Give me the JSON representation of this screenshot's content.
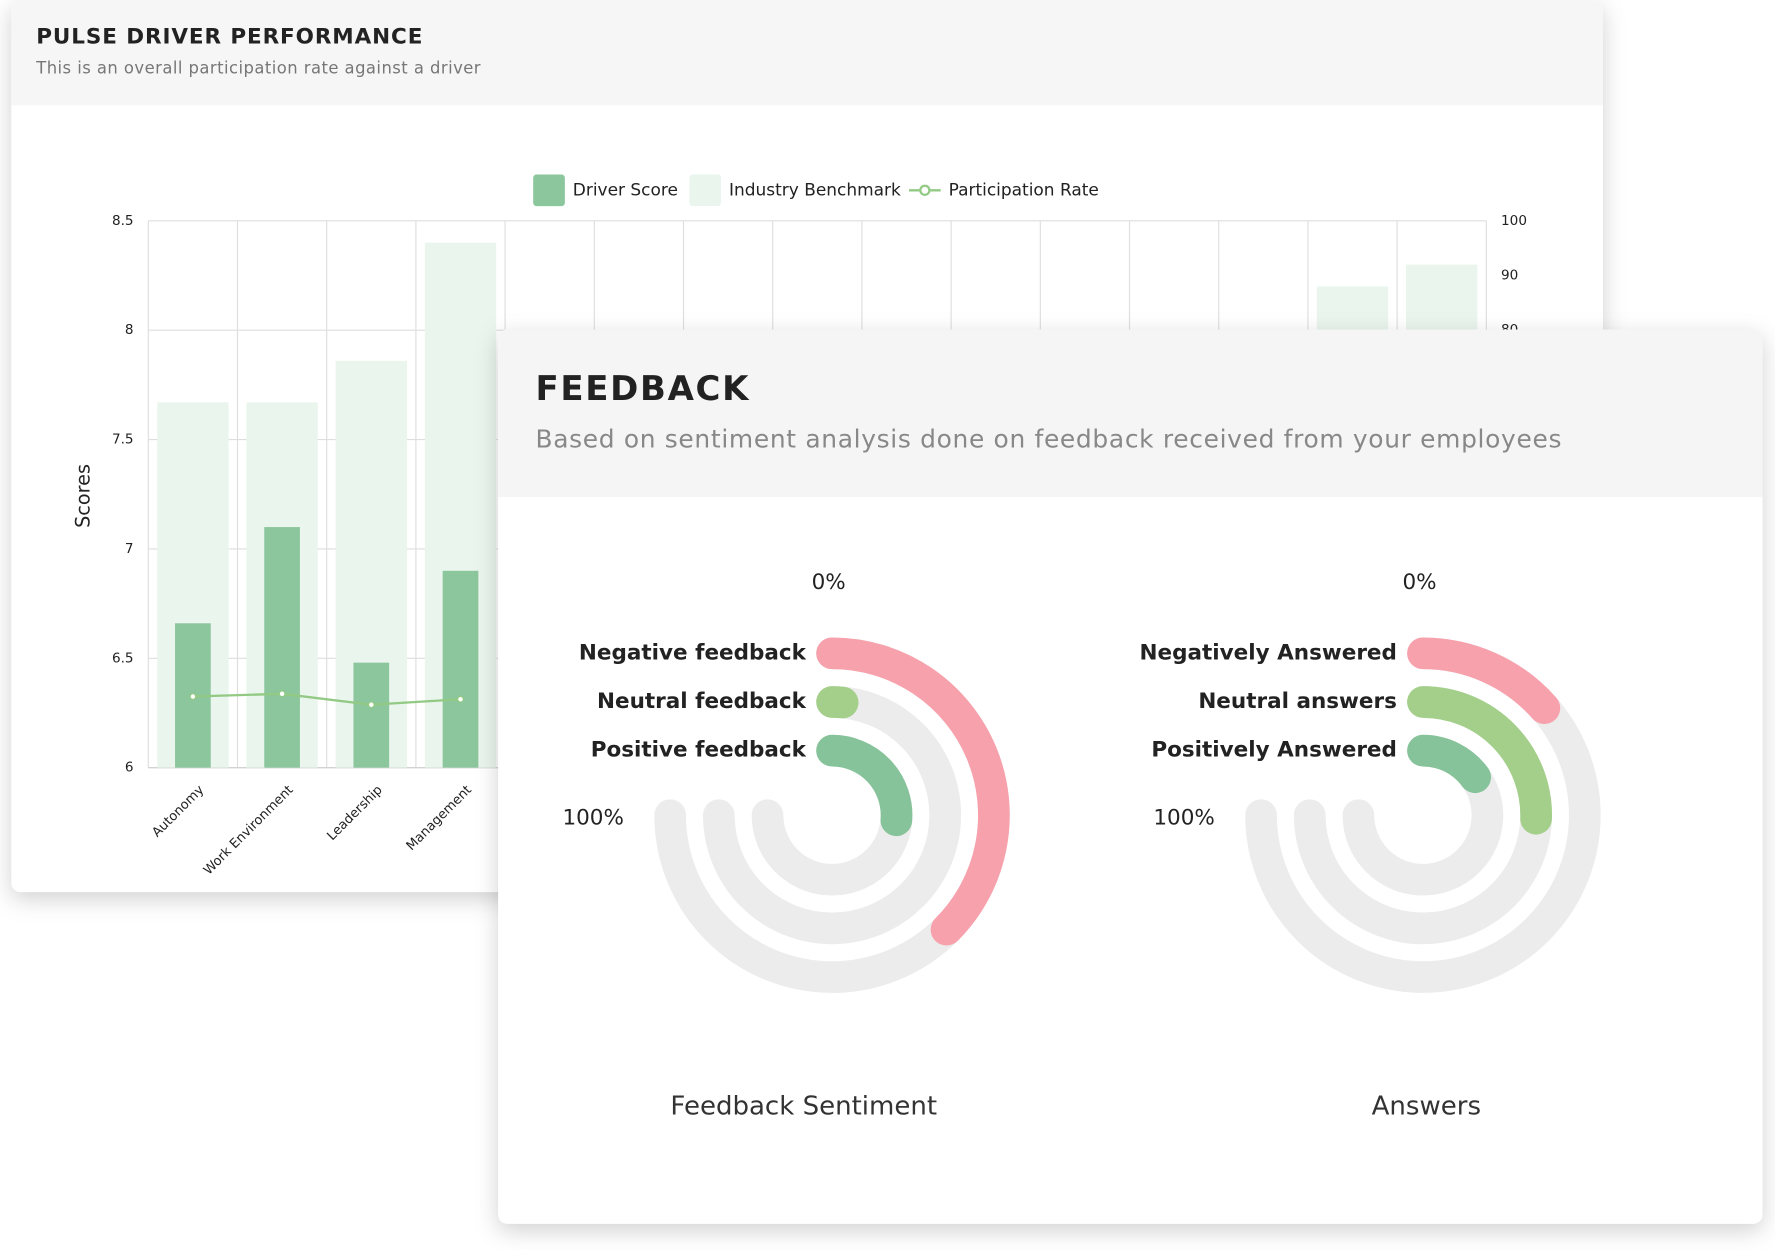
{
  "feedback_card": {
    "title": "FEEDBACK",
    "subtitle": "Based on sentiment analysis done on feedback received from your employees"
  },
  "chart_data": [
    {
      "type": "combo",
      "title": "PULSE DRIVER PERFORMANCE",
      "subtitle": "This is an overall participation rate against a driver",
      "ylabel": "Scores",
      "categories": [
        "Autonomy",
        "Work Environment",
        "Leadership",
        "Management",
        null,
        null,
        null,
        null,
        null,
        null,
        null,
        null,
        null,
        null,
        null
      ],
      "series": [
        {
          "name": "Driver Score",
          "type": "bar",
          "color": "#8cc69d",
          "values": [
            6.66,
            7.1,
            6.48,
            6.9,
            null,
            null,
            null,
            null,
            null,
            null,
            null,
            null,
            null,
            null,
            null
          ]
        },
        {
          "name": "Industry Benchmark",
          "type": "bar",
          "color": "#e9f5ed",
          "values": [
            7.67,
            7.67,
            7.86,
            8.4,
            null,
            null,
            null,
            null,
            null,
            null,
            null,
            null,
            null,
            8.2,
            8.3
          ]
        },
        {
          "name": "Participation Rate",
          "type": "line",
          "axis": "y2",
          "color": "#92c983",
          "values": [
            13,
            13.5,
            11.5,
            12.5,
            null,
            null,
            null,
            null,
            null,
            null,
            null,
            null,
            null,
            null,
            null
          ]
        }
      ],
      "ylim": [
        6,
        8.5
      ],
      "yticks": [
        6,
        6.5,
        7,
        7.5,
        8,
        8.5
      ],
      "y2lim": [
        0,
        100
      ],
      "y2ticks": [
        80,
        90,
        100
      ],
      "grid": true
    },
    {
      "type": "radial_bar",
      "title": "Feedback Sentiment",
      "categories": [
        "Negative feedback",
        "Neutral feedback",
        "Positive feedback"
      ],
      "values": [
        50,
        2,
        35
      ],
      "colors": [
        "#f7a1ac",
        "#a3cf8a",
        "#86c39a"
      ],
      "xlim": [
        0,
        100
      ],
      "xticks": [
        {
          "value": 0,
          "label": "0%"
        },
        {
          "value": 100,
          "label": "100%"
        }
      ]
    },
    {
      "type": "radial_bar",
      "title": "Answers",
      "categories": [
        "Negatively Answered",
        "Neutral answers",
        "Positively Answered"
      ],
      "values": [
        18,
        34,
        20
      ],
      "colors": [
        "#f7a1ac",
        "#a3cf8a",
        "#86c39a"
      ],
      "xlim": [
        0,
        100
      ],
      "xticks": [
        {
          "value": 0,
          "label": "0%"
        },
        {
          "value": 100,
          "label": "100%"
        }
      ]
    }
  ]
}
